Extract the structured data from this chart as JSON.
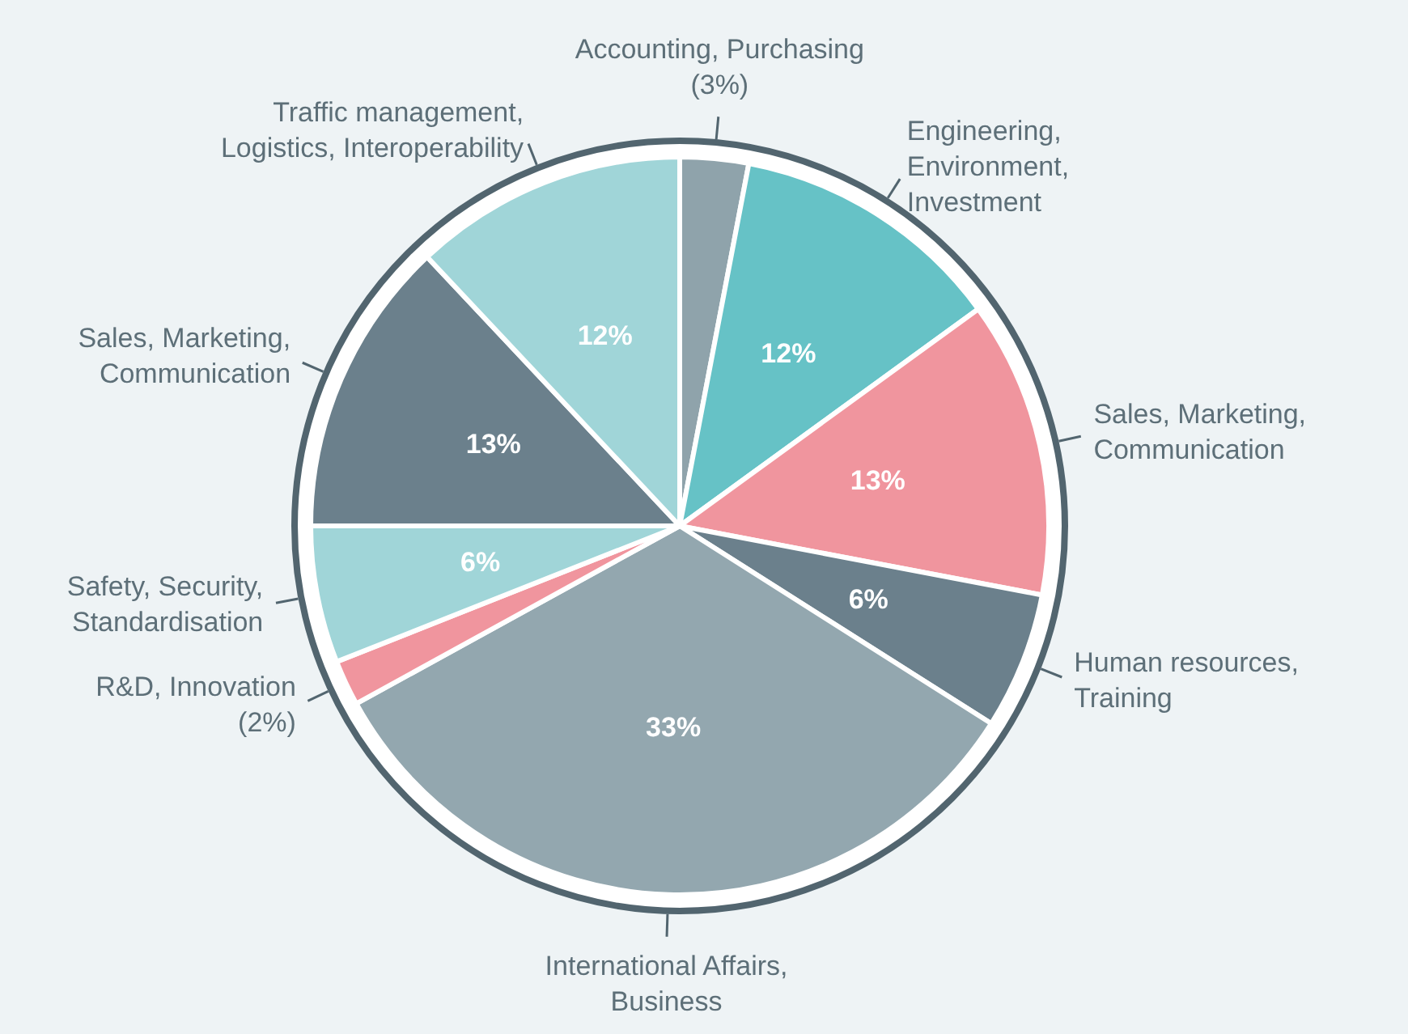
{
  "chart_data": {
    "type": "pie",
    "categories": [
      "Accounting, Purchasing",
      "Engineering,\nEnvironment,\nInvestment",
      "Sales, Marketing,\nCommunication",
      "Human resources,\nTraining",
      "International Affairs,\nBusiness",
      "R&D, Innovation",
      "Safety, Security,\nStandardisation",
      "Sales, Marketing,\nCommunication",
      "Traffic management,\nLogistics, Interoperability"
    ],
    "values": [
      3,
      12,
      13,
      6,
      33,
      2,
      6,
      13,
      12
    ],
    "colors": [
      "#8fa3ab",
      "#66c2c6",
      "#f0959e",
      "#6b808c",
      "#93a7af",
      "#f0959e",
      "#a0d5d8",
      "#6b808c",
      "#a0d5d8"
    ],
    "value_labels": [
      "(3%)",
      "12%",
      "13%",
      "6%",
      "33%",
      "(2%)",
      "6%",
      "13%",
      "12%"
    ],
    "legend": false
  }
}
